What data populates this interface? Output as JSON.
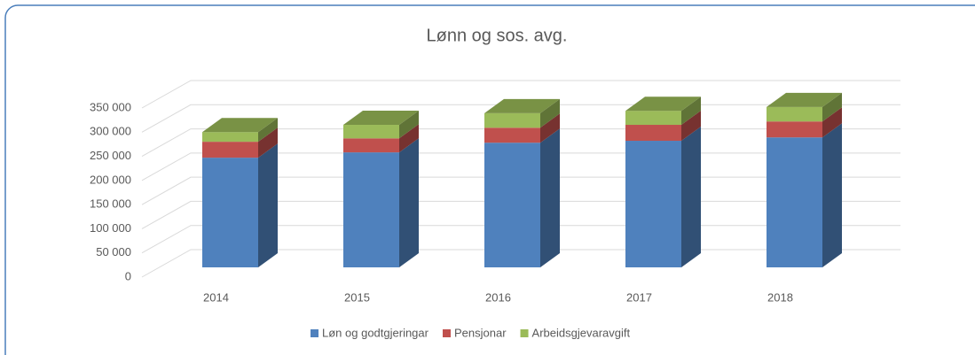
{
  "chart_data": {
    "type": "bar3d_stacked",
    "title": "Lønn og sos. avg.",
    "categories": [
      "2014",
      "2015",
      "2016",
      "2017",
      "2018"
    ],
    "series": [
      {
        "name": "Løn og godtgjeringar",
        "color": "#4f81bd",
        "values": [
          227000,
          238000,
          258000,
          262000,
          269000
        ]
      },
      {
        "name": "Pensjonar",
        "color": "#c0504d",
        "values": [
          33000,
          29000,
          31000,
          33000,
          33000
        ]
      },
      {
        "name": "Arbeidsgjevaravgift",
        "color": "#9bbb59",
        "values": [
          20000,
          28000,
          30000,
          29000,
          30000
        ]
      }
    ],
    "ylim": [
      0,
      350000
    ],
    "yticks": [
      0,
      {
        "value": 50000,
        "label": "50 000"
      },
      {
        "value": 100000,
        "label": "100 000"
      },
      {
        "value": 150000,
        "label": "150 000"
      },
      {
        "value": 200000,
        "label": "200 000"
      },
      {
        "value": 250000,
        "label": "250 000"
      },
      {
        "value": 300000,
        "label": "300 000"
      },
      {
        "value": 350000,
        "label": "350 000"
      }
    ],
    "grid": true,
    "legend": "bottom"
  }
}
